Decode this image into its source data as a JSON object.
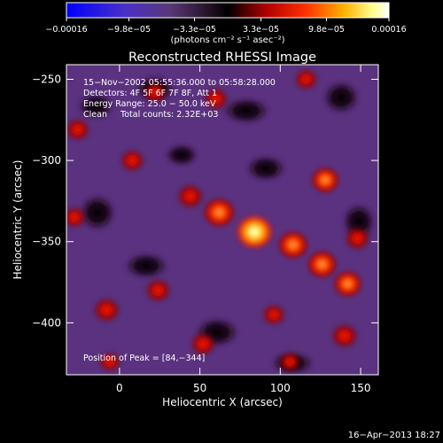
{
  "chart_data": {
    "type": "heatmap",
    "title": "Reconstructed RHESSI Image",
    "xlabel": "Heliocentric X (arcsec)",
    "ylabel": "Heliocentric Y (arcsec)",
    "xlim": [
      -33,
      161
    ],
    "ylim": [
      -432,
      -241
    ],
    "x_ticks": [
      0,
      50,
      100,
      150
    ],
    "x_tick_labels": [
      "0",
      "50",
      "100",
      "150"
    ],
    "y_ticks": [
      -250,
      -300,
      -350,
      -400
    ],
    "y_tick_labels": [
      "−250",
      "−300",
      "−350",
      "−400"
    ],
    "colorbar": {
      "tick_labels": [
        "−0.00016",
        "−9.8e−05",
        "−3.3e−05",
        "3.3e−05",
        "9.8e−05",
        "0.00016"
      ],
      "tick_values": [
        -0.00016,
        -9.8e-05,
        -3.3e-05,
        3.3e-05,
        9.8e-05,
        0.00016
      ],
      "range": [
        -0.00016,
        0.00016
      ],
      "units_label": "(photons cm⁻² s⁻¹ asec⁻²)",
      "colors": [
        "#0000ff",
        "#5a2fa8",
        "#3a2a3a",
        "#000000",
        "#c00000",
        "#ff3000",
        "#ffb000",
        "#ffff80",
        "#ffffff"
      ]
    },
    "annotations": [
      "15−Nov−2002 05:55:36.000 to 05:58:28.000",
      "Detectors: 4F 5F 6F 7F 8F, Att 1",
      "Energy Range: 25.0 − 50.0 keV",
      "Clean     Total counts: 2.32E+03"
    ],
    "peak_label": "Position of Peak = [84,−344]",
    "peak_position": [
      84,
      -344
    ],
    "sources": [
      {
        "x": 84,
        "y": -344,
        "level": 1.0
      },
      {
        "x": 62,
        "y": -332,
        "level": 0.75
      },
      {
        "x": 108,
        "y": -352,
        "level": 0.7
      },
      {
        "x": 126,
        "y": -364,
        "level": 0.68
      },
      {
        "x": 142,
        "y": -376,
        "level": 0.62
      },
      {
        "x": 44,
        "y": -322,
        "level": 0.55
      },
      {
        "x": 128,
        "y": -312,
        "level": 0.6
      },
      {
        "x": 148,
        "y": -348,
        "level": 0.5
      },
      {
        "x": 140,
        "y": -408,
        "level": 0.55
      },
      {
        "x": -8,
        "y": -392,
        "level": 0.55
      },
      {
        "x": 24,
        "y": -380,
        "level": 0.5
      },
      {
        "x": 52,
        "y": -413,
        "level": 0.5
      },
      {
        "x": 8,
        "y": -300,
        "level": 0.45
      },
      {
        "x": -26,
        "y": -281,
        "level": 0.45
      },
      {
        "x": 22,
        "y": -258,
        "level": 0.4
      },
      {
        "x": 60,
        "y": -262,
        "level": 0.45
      },
      {
        "x": 116,
        "y": -250,
        "level": 0.4
      },
      {
        "x": -28,
        "y": -335,
        "level": 0.4
      },
      {
        "x": -6,
        "y": -424,
        "level": 0.35
      },
      {
        "x": 96,
        "y": -395,
        "level": 0.4
      },
      {
        "x": 106,
        "y": -424,
        "level": 0.35
      }
    ]
  },
  "footer": {
    "timestamp": "16−Apr−2013 18:27"
  }
}
